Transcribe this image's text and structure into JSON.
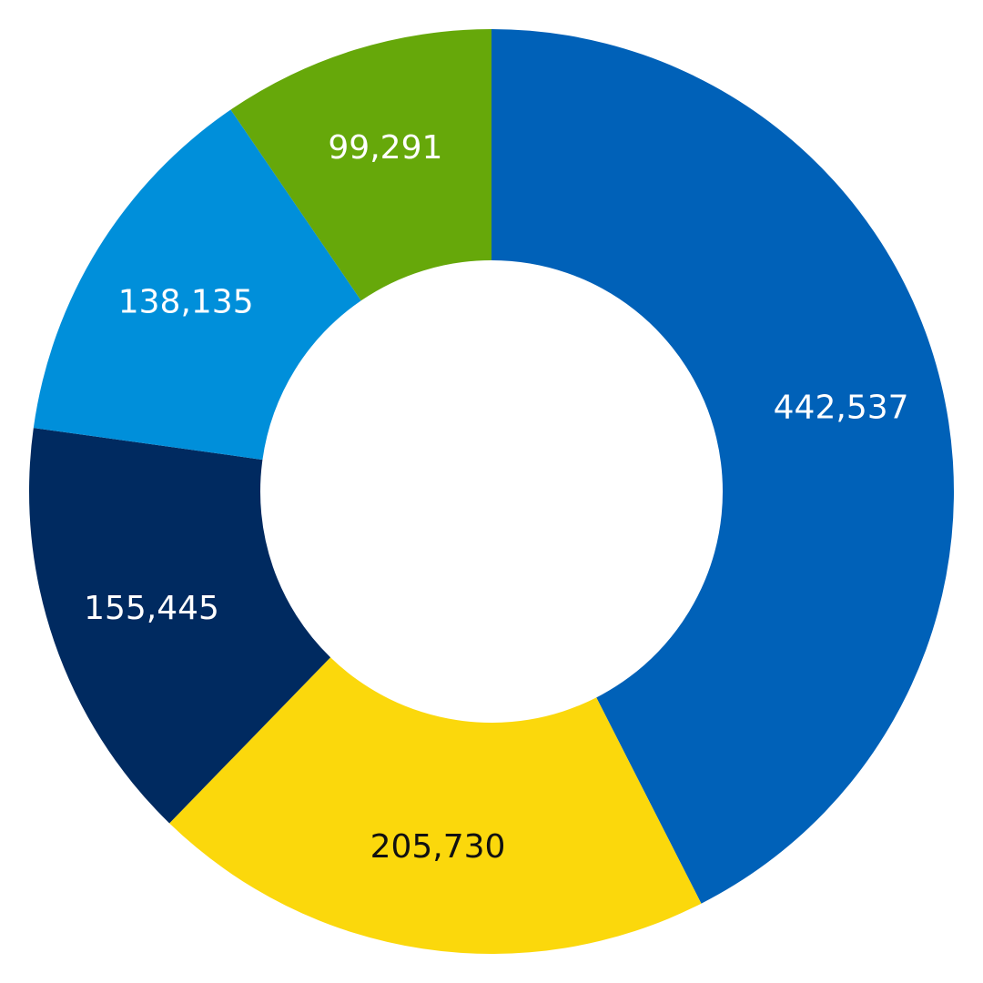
{
  "chart_data": {
    "type": "pie",
    "variant": "donut",
    "title": "",
    "legend": "none",
    "start_angle_deg": 0,
    "direction": "clockwise",
    "slices": [
      {
        "value": 442537,
        "label": "442,537",
        "color": "#0061B8",
        "label_color": "#FFFFFF"
      },
      {
        "value": 205730,
        "label": "205,730",
        "color": "#FBD80C",
        "label_color": "#111111"
      },
      {
        "value": 155445,
        "label": "155,445",
        "color": "#002A60",
        "label_color": "#FFFFFF"
      },
      {
        "value": 138135,
        "label": "138,135",
        "color": "#008FDA",
        "label_color": "#FFFFFF"
      },
      {
        "value": 99291,
        "label": "99,291",
        "color": "#66A80A",
        "label_color": "#FFFFFF"
      }
    ]
  }
}
